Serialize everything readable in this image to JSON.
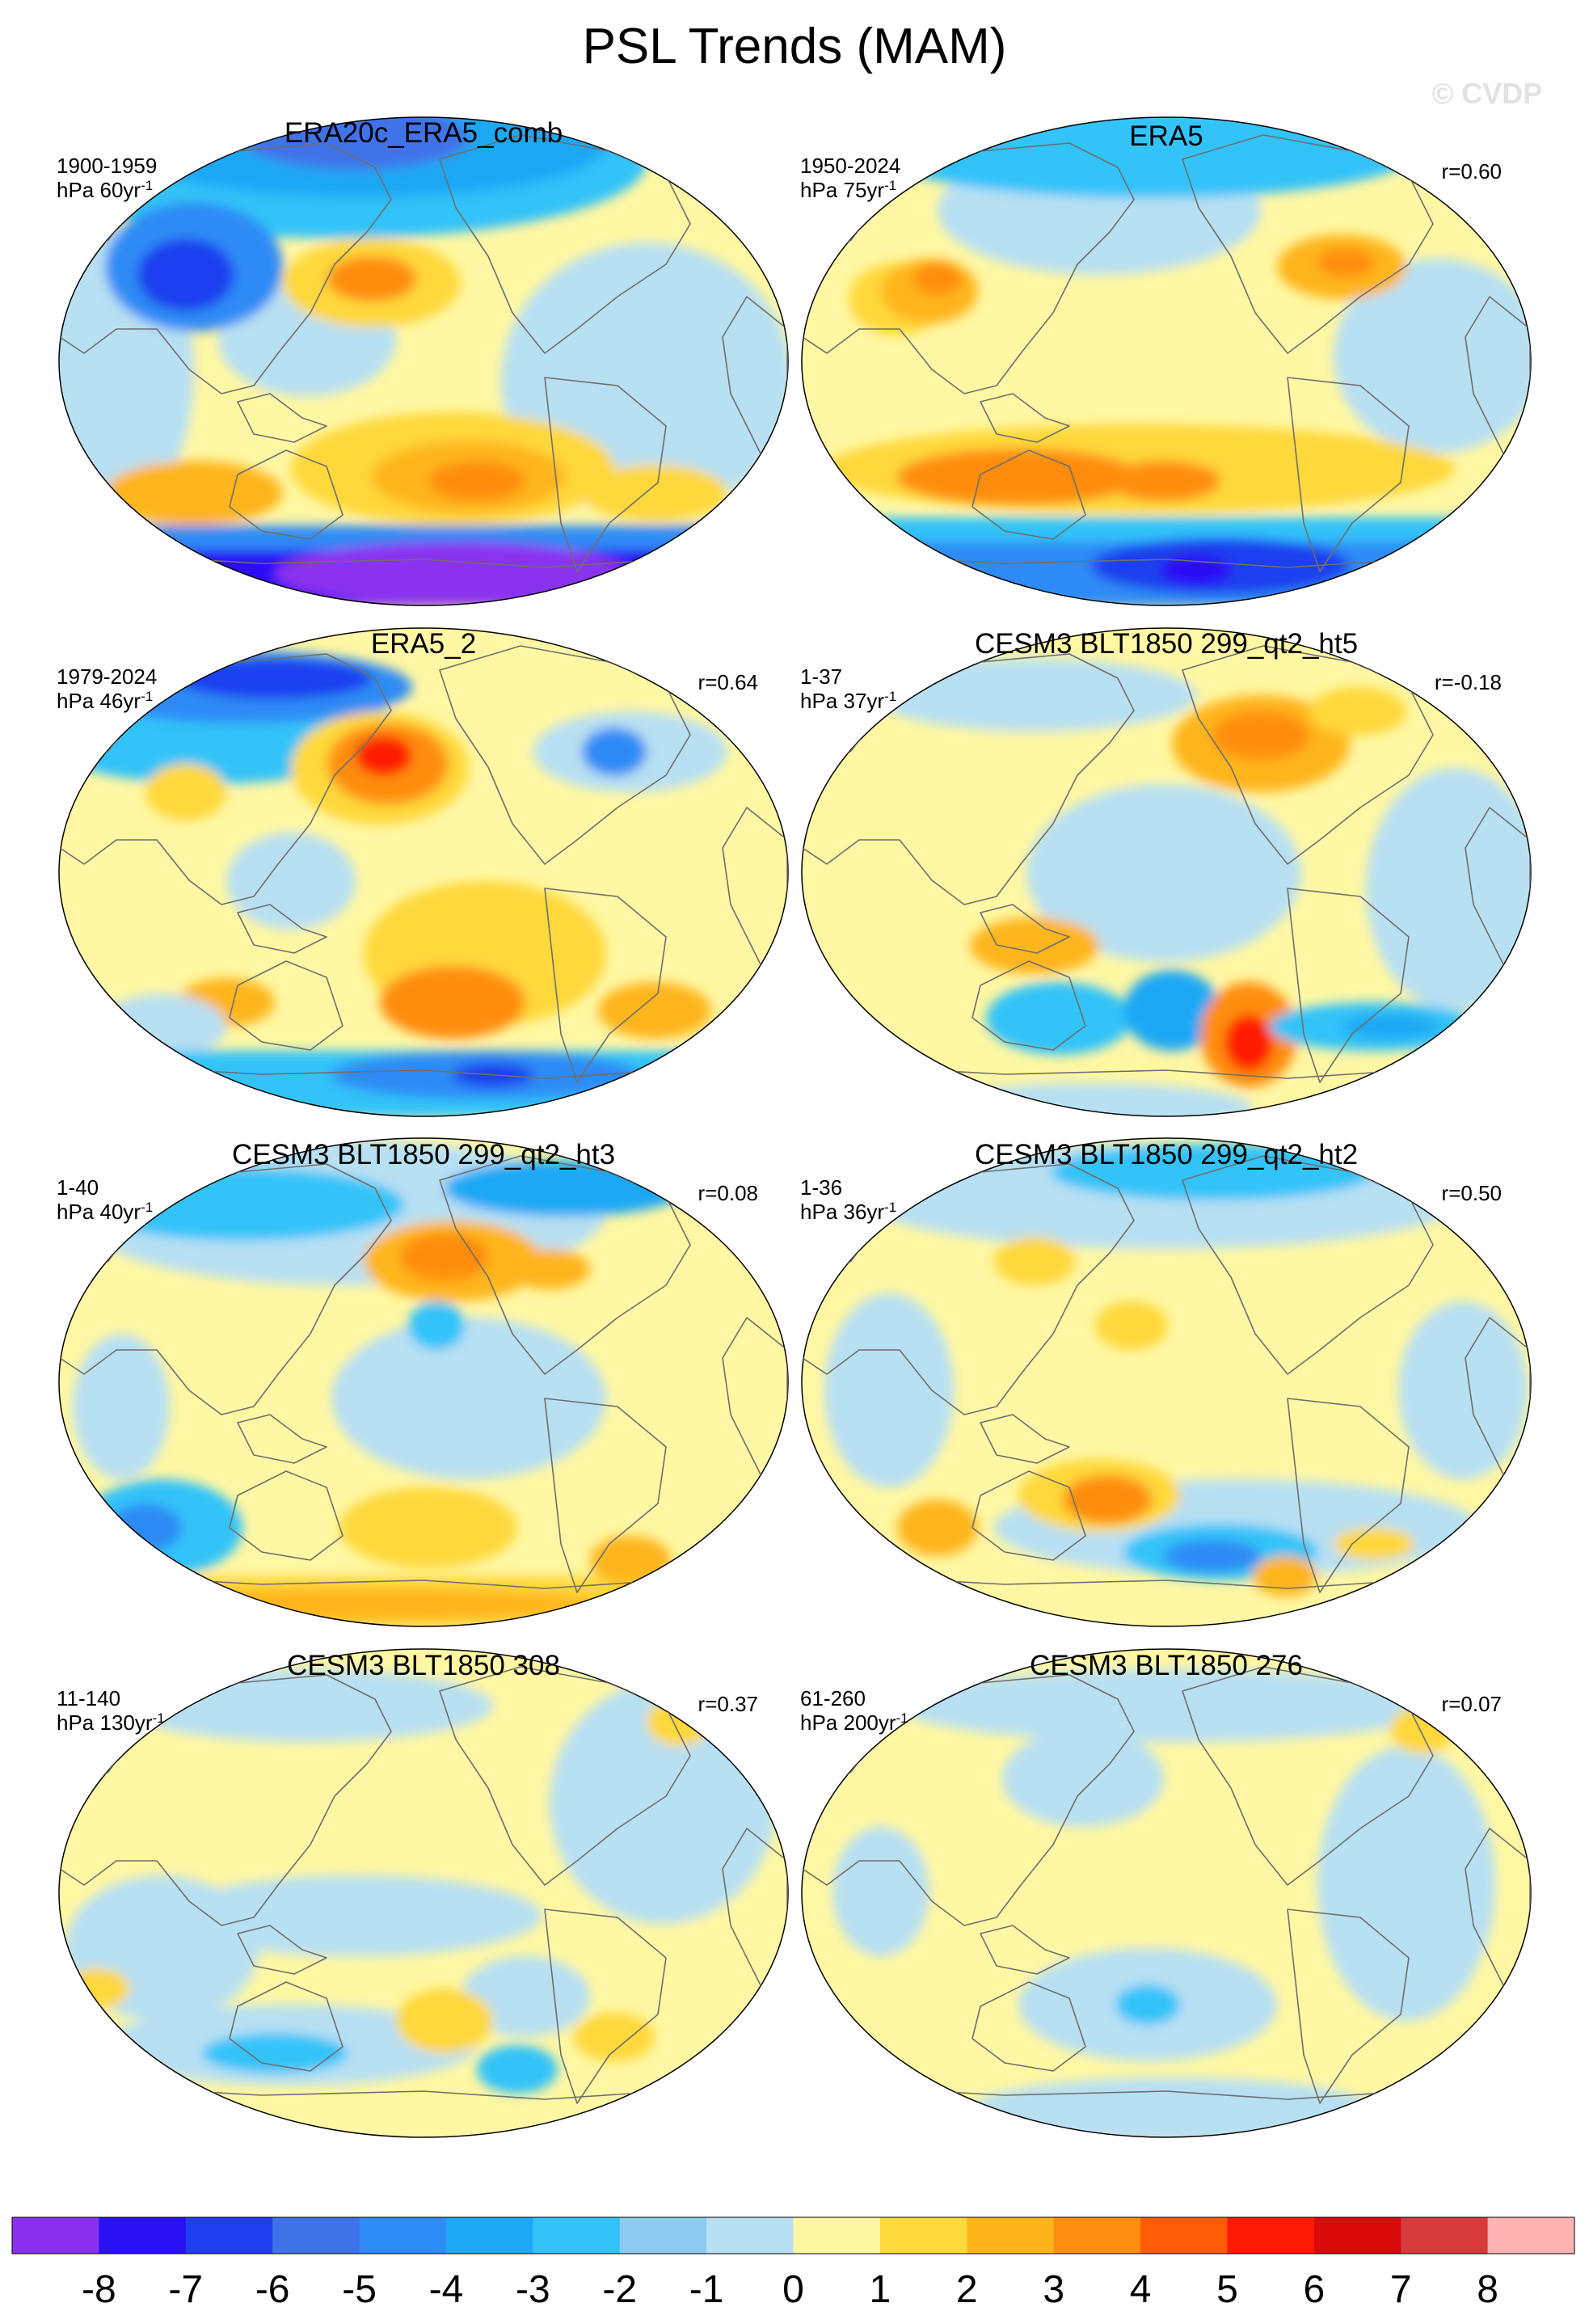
{
  "figure": {
    "title": "PSL Trends (MAM)",
    "copyright": "© CVDP"
  },
  "panels": [
    {
      "title": "ERA20c_ERA5_comb",
      "period": "1900-1959",
      "units_base": "hPa 60yr",
      "units_exp": "-1",
      "corr": ""
    },
    {
      "title": "ERA5",
      "period": "1950-2024",
      "units_base": "hPa 75yr",
      "units_exp": "-1",
      "corr": "r=0.60"
    },
    {
      "title": "ERA5_2",
      "period": "1979-2024",
      "units_base": "hPa 46yr",
      "units_exp": "-1",
      "corr": "r=0.64"
    },
    {
      "title": "CESM3 BLT1850 299_qt2_ht5",
      "period": "1-37",
      "units_base": "hPa 37yr",
      "units_exp": "-1",
      "corr": "r=-0.18"
    },
    {
      "title": "CESM3 BLT1850 299_qt2_ht3",
      "period": "1-40",
      "units_base": "hPa 40yr",
      "units_exp": "-1",
      "corr": "r=0.08"
    },
    {
      "title": "CESM3 BLT1850 299_qt2_ht2",
      "period": "1-36",
      "units_base": "hPa 36yr",
      "units_exp": "-1",
      "corr": "r=0.50"
    },
    {
      "title": "CESM3 BLT1850 308",
      "period": "11-140",
      "units_base": "hPa 130yr",
      "units_exp": "-1",
      "corr": "r=0.37"
    },
    {
      "title": "CESM3 BLT1850 276",
      "period": "61-260",
      "units_base": "hPa 200yr",
      "units_exp": "-1",
      "corr": "r=0.07"
    }
  ],
  "colorbar": {
    "ticks": [
      "-8",
      "-7",
      "-6",
      "-5",
      "-4",
      "-3",
      "-2",
      "-1",
      "0",
      "1",
      "2",
      "3",
      "4",
      "5",
      "6",
      "7",
      "8"
    ],
    "colors": [
      "#8b30ef",
      "#2a10f5",
      "#1f3fef",
      "#3f72e8",
      "#2f8bf5",
      "#1ea8f5",
      "#33c3f9",
      "#8ccaef",
      "#b8e0f3",
      "#fff7a3",
      "#ffd83a",
      "#ffb51a",
      "#ff8d10",
      "#ff5c08",
      "#ff1a05",
      "#d80a0a",
      "#d63a3a",
      "#ffb3b3"
    ]
  },
  "colors": {
    "ocean_neg": "#b8e0f3",
    "ocean_pos": "#fff7a3",
    "coast": "#6e6e6e"
  }
}
